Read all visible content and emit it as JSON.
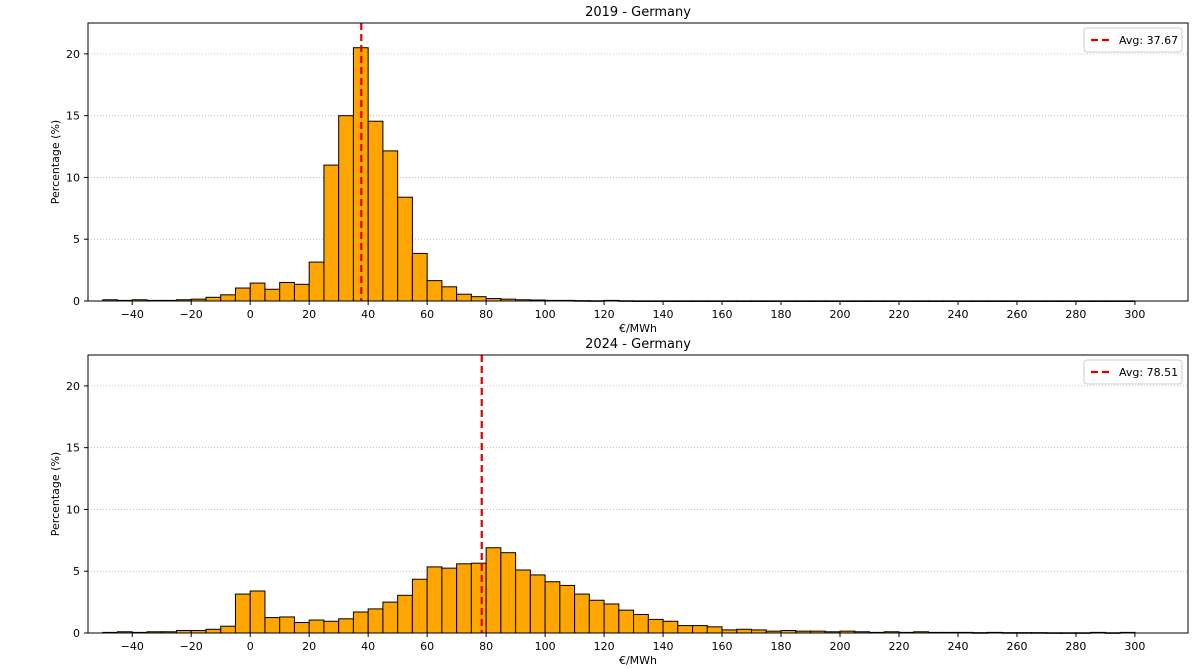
{
  "chart_data": [
    {
      "type": "bar",
      "title": "2019 - Germany",
      "xlabel": "€/MWh",
      "ylabel": "Percentage (%)",
      "xlim": [
        -55,
        318
      ],
      "ylim": [
        0,
        22.5
      ],
      "xticks": [
        -40,
        -20,
        0,
        20,
        40,
        60,
        80,
        100,
        120,
        140,
        160,
        180,
        200,
        220,
        240,
        260,
        280,
        300
      ],
      "yticks": [
        0,
        5,
        10,
        15,
        20
      ],
      "grid": "y, dotted",
      "bin_start": -50,
      "bin_width": 5,
      "bar_color": "#FFA500",
      "values": [
        0.1,
        0.05,
        0.1,
        0.05,
        0.05,
        0.1,
        0.15,
        0.3,
        0.5,
        1.05,
        1.45,
        0.95,
        1.5,
        1.35,
        3.15,
        11.0,
        15.0,
        20.5,
        14.55,
        12.15,
        8.4,
        3.85,
        1.65,
        1.15,
        0.55,
        0.35,
        0.2,
        0.15,
        0.1,
        0.08,
        0.05,
        0.05,
        0.03,
        0.02,
        0.05,
        0.02,
        0.01,
        0.01,
        0.01,
        0.01,
        0.01,
        0.01,
        0.01,
        0.01,
        0.01,
        0.01,
        0.01,
        0.01,
        0.01,
        0.01,
        0.01,
        0.01,
        0.01,
        0.01,
        0.01,
        0.01,
        0.01,
        0.01,
        0.01,
        0.01,
        0.01,
        0.01,
        0.01,
        0.01,
        0.01,
        0.01,
        0.01,
        0.01,
        0.01,
        0.01
      ],
      "avg_line": {
        "value": 37.67,
        "label": "Avg: 37.67",
        "color": "#DD0000"
      },
      "legend_position": "top-right"
    },
    {
      "type": "bar",
      "title": "2024 - Germany",
      "xlabel": "€/MWh",
      "ylabel": "Percentage (%)",
      "xlim": [
        -55,
        318
      ],
      "ylim": [
        0,
        22.5
      ],
      "xticks": [
        -40,
        -20,
        0,
        20,
        40,
        60,
        80,
        100,
        120,
        140,
        160,
        180,
        200,
        220,
        240,
        260,
        280,
        300
      ],
      "yticks": [
        0,
        5,
        10,
        15,
        20
      ],
      "grid": "y, dotted",
      "bin_start": -50,
      "bin_width": 5,
      "bar_color": "#FFA500",
      "values": [
        0.05,
        0.1,
        0.05,
        0.1,
        0.1,
        0.2,
        0.2,
        0.3,
        0.55,
        3.15,
        3.4,
        1.25,
        1.3,
        0.85,
        1.05,
        0.95,
        1.15,
        1.7,
        1.95,
        2.5,
        3.05,
        4.35,
        5.35,
        5.25,
        5.6,
        5.65,
        6.9,
        6.5,
        5.1,
        4.7,
        4.15,
        3.85,
        3.15,
        2.65,
        2.35,
        1.85,
        1.5,
        1.1,
        0.95,
        0.6,
        0.6,
        0.5,
        0.25,
        0.3,
        0.25,
        0.15,
        0.2,
        0.15,
        0.15,
        0.1,
        0.15,
        0.1,
        0.05,
        0.1,
        0.05,
        0.1,
        0.05,
        0.05,
        0.05,
        0.03,
        0.05,
        0.03,
        0.03,
        0.03,
        0.02,
        0.02,
        0.02,
        0.05,
        0.02,
        0.05
      ],
      "avg_line": {
        "value": 78.51,
        "label": "Avg: 78.51",
        "color": "#DD0000"
      },
      "legend_position": "top-right"
    }
  ]
}
